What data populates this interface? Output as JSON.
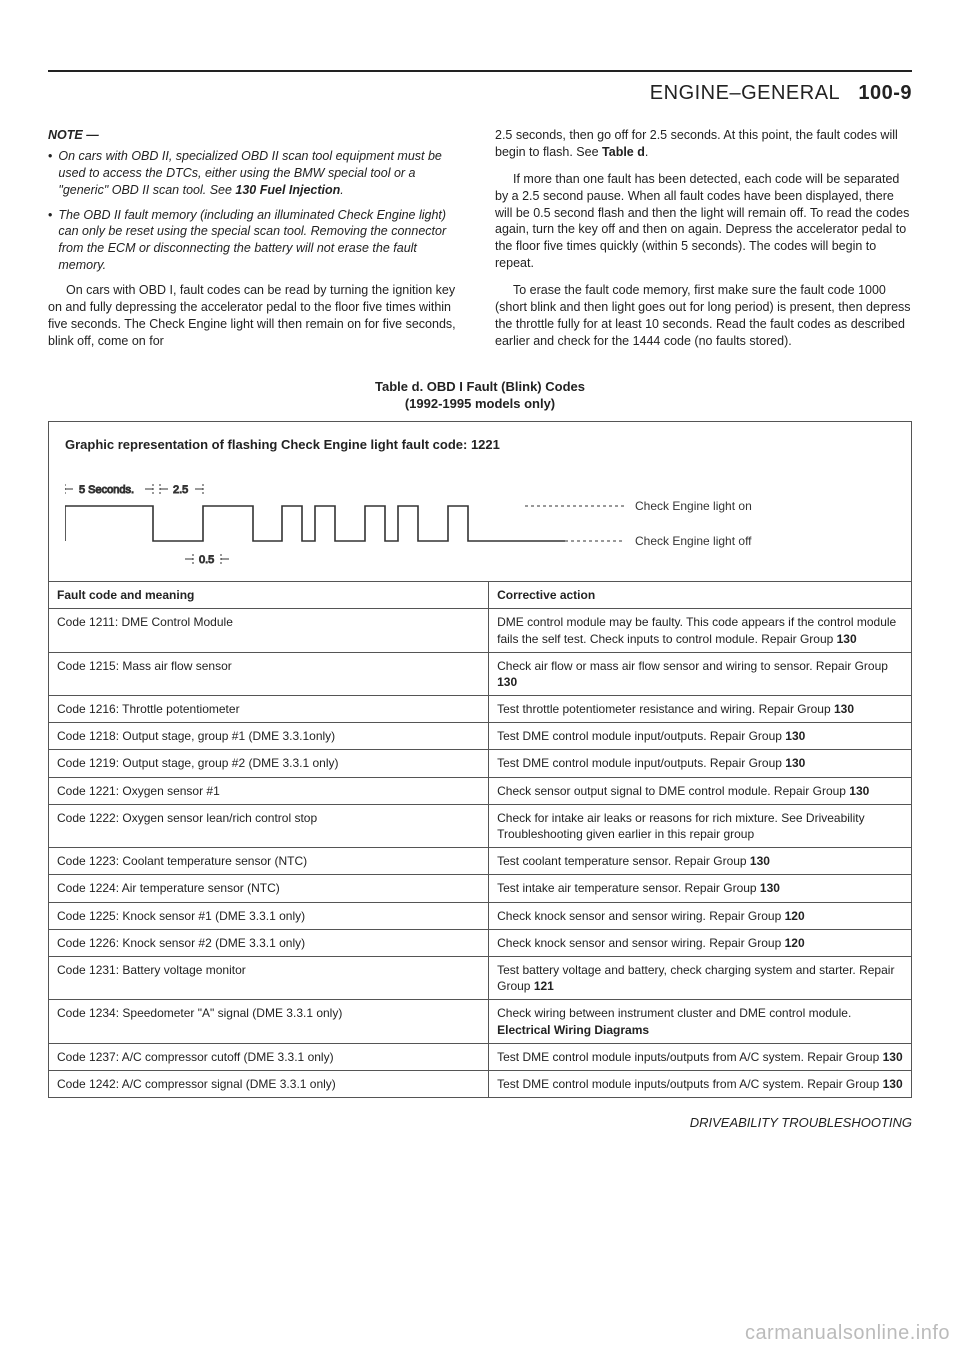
{
  "header": {
    "section": "ENGINE–GENERAL",
    "page": "100-9"
  },
  "note": {
    "heading": "NOTE —",
    "items": [
      "On cars with OBD II, specialized OBD II scan tool equipment must be used to access the DTCs, either using the BMW special tool or a \"generic\" OBD II scan tool. See 130 Fuel Injection.",
      "The OBD II fault memory (including an illuminated Check Engine light) can only be reset using the special scan tool. Removing the connector from the ECM or disconnecting the battery will not erase the fault memory."
    ]
  },
  "left_para": "On cars with OBD I, fault codes can be read by turning the ignition key on and fully depressing the accelerator pedal to the floor five times within five seconds. The Check Engine light will then remain on for five seconds, blink off, come on for",
  "right_para1": "2.5 seconds, then go off for 2.5 seconds. At this point, the fault codes will begin to flash. See Table d.",
  "right_para2": "If more than one fault has been detected, each code will be separated by a 2.5 second pause. When all fault codes have been displayed, there will be 0.5 second flash and then the light will remain off. To read the codes again, turn the key off and then on again. Depress the accelerator pedal to the floor five times quickly (within 5 seconds). The codes will begin to repeat.",
  "right_para3": "To erase the fault code memory, first make sure the fault code 1000 (short blink and then light goes out for long period) is present, then depress the throttle fully for at least 10 seconds. Read the fault codes as described earlier and check for the 1444 code (no faults stored).",
  "table_title_line1": "Table d. OBD I Fault (Blink) Codes",
  "table_title_line2": "(1992-1995 models only)",
  "graphic": {
    "title": "Graphic representation of flashing Check Engine light fault code: 1221",
    "label_5s": "5 Seconds.",
    "label_2_5": "2.5",
    "label_0_5": "0.5",
    "legend_on": "Check Engine light on",
    "legend_off": "Check Engine light off",
    "colors": {
      "line": "#333333",
      "dash": "#333333",
      "text": "#333333"
    },
    "stroke_width": 1.6
  },
  "columns": {
    "fault": "Fault code and meaning",
    "action": "Corrective action"
  },
  "rows": [
    {
      "code": "Code 1211: DME Control Module",
      "action": "DME control module may be faulty. This code appears if the control module fails the self test. Check inputs to control module. Repair Group 130"
    },
    {
      "code": "Code 1215: Mass air flow sensor",
      "action": "Check air flow or mass air flow sensor and wiring to sensor. Repair Group 130"
    },
    {
      "code": "Code 1216: Throttle potentiometer",
      "action": "Test throttle potentiometer resistance and wiring. Repair Group 130"
    },
    {
      "code": "Code 1218: Output stage, group #1 (DME 3.3.1only)",
      "action": "Test DME control module input/outputs. Repair Group 130"
    },
    {
      "code": "Code 1219: Output stage, group #2 (DME 3.3.1 only)",
      "action": "Test DME control module input/outputs. Repair Group 130"
    },
    {
      "code": "Code 1221: Oxygen sensor #1",
      "action": "Check sensor output signal to DME control module. Repair Group 130"
    },
    {
      "code": "Code 1222: Oxygen sensor lean/rich control stop",
      "action": "Check for intake air leaks or reasons for rich mixture. See Driveability Troubleshooting given earlier in this repair group"
    },
    {
      "code": "Code 1223: Coolant temperature sensor (NTC)",
      "action": "Test coolant temperature sensor. Repair Group 130"
    },
    {
      "code": "Code 1224: Air temperature sensor (NTC)",
      "action": "Test intake air temperature sensor. Repair Group 130"
    },
    {
      "code": "Code 1225: Knock sensor #1 (DME 3.3.1 only)",
      "action": "Check knock sensor and sensor wiring. Repair Group 120"
    },
    {
      "code": "Code 1226: Knock sensor #2 (DME 3.3.1 only)",
      "action": "Check knock sensor and sensor wiring. Repair Group 120"
    },
    {
      "code": "Code 1231: Battery voltage monitor",
      "action": "Test battery voltage and battery, check charging system and starter. Repair Group 121"
    },
    {
      "code": "Code 1234: Speedometer \"A\" signal (DME 3.3.1 only)",
      "action": "Check wiring between instrument cluster and DME control module. Electrical Wiring Diagrams"
    },
    {
      "code": "Code 1237: A/C compressor cutoff (DME 3.3.1 only)",
      "action": "Test DME control module inputs/outputs from A/C system. Repair Group 130"
    },
    {
      "code": "Code 1242: A/C compressor signal (DME 3.3.1 only)",
      "action": "Test DME control module inputs/outputs from A/C system. Repair Group 130"
    }
  ],
  "bold_groups": [
    "130",
    "120",
    "121",
    "Electrical Wiring Diagrams",
    "Table d",
    "130 Fuel Injection"
  ],
  "footer": "DRIVEABILITY TROUBLESHOOTING",
  "watermark": "carmanualsonline.info"
}
